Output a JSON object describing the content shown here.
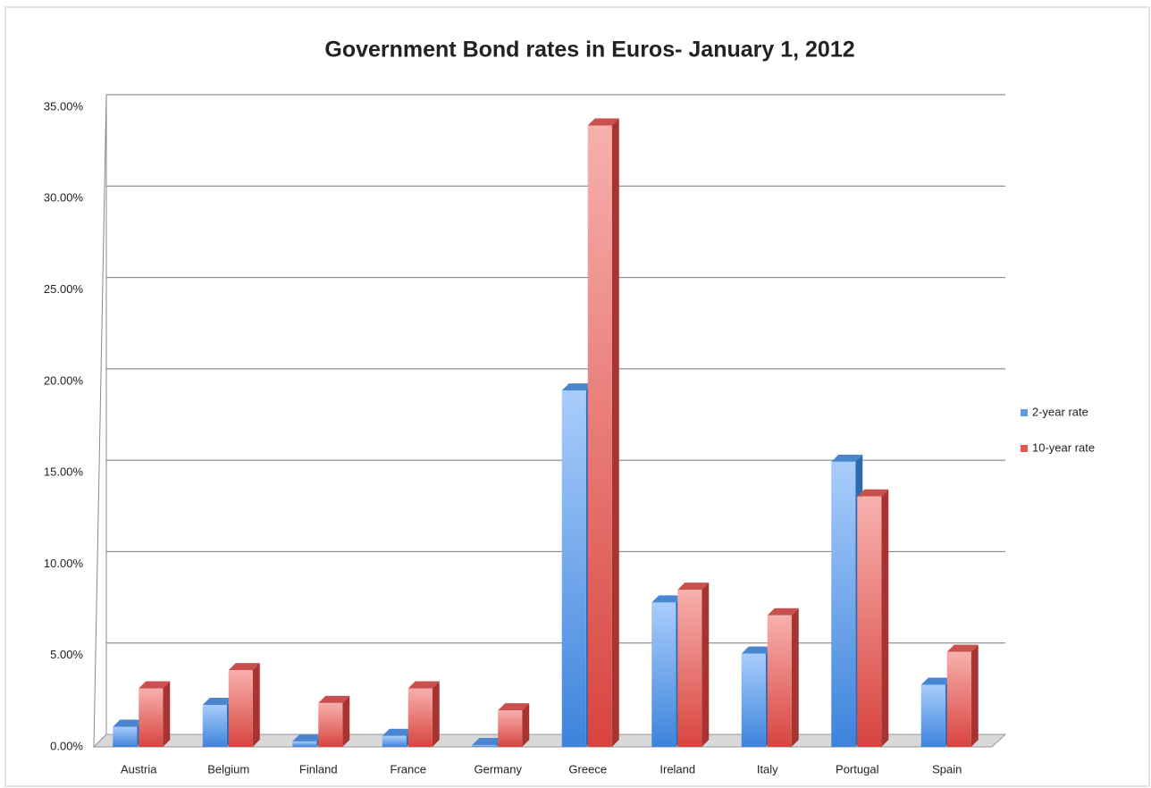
{
  "chart_data": {
    "type": "bar",
    "title": "Government Bond rates in Euros- January 1, 2012",
    "categories": [
      "Austria",
      "Belgium",
      "Finland",
      "France",
      "Germany",
      "Greece",
      "Ireland",
      "Italy",
      "Portugal",
      "Spain"
    ],
    "series": [
      {
        "name": "2-year rate",
        "color": "#5b9be6",
        "values": [
          1.1,
          2.3,
          0.3,
          0.6,
          0.1,
          19.5,
          7.9,
          5.1,
          15.6,
          3.4
        ]
      },
      {
        "name": "10-year rate",
        "color": "#e05a55",
        "values": [
          3.2,
          4.2,
          2.4,
          3.2,
          2.0,
          34.0,
          8.6,
          7.2,
          13.7,
          5.2
        ]
      }
    ],
    "ylim": [
      0,
      35
    ],
    "yticks": [
      {
        "value": 0,
        "label": "0.00%"
      },
      {
        "value": 5,
        "label": "5.00%"
      },
      {
        "value": 10,
        "label": "10.00%"
      },
      {
        "value": 15,
        "label": "15.00%"
      },
      {
        "value": 20,
        "label": "20.00%"
      },
      {
        "value": 25,
        "label": "25.00%"
      },
      {
        "value": 30,
        "label": "30.00%"
      },
      {
        "value": 35,
        "label": "35.00%"
      }
    ],
    "grid": true,
    "legend": "right"
  }
}
